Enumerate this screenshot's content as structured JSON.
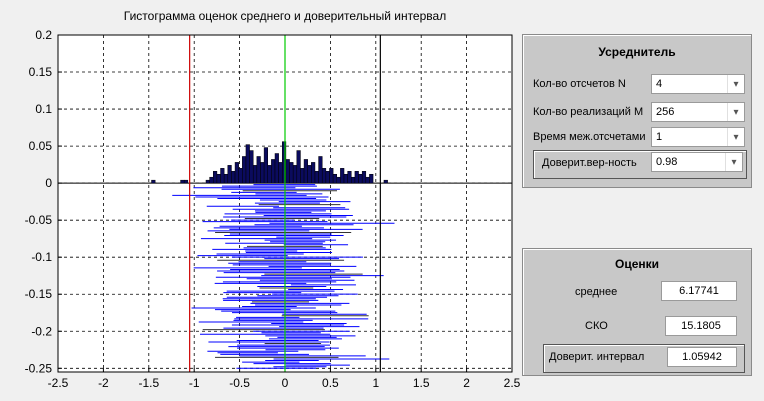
{
  "plot": {
    "title": "Гистограмма оценок среднего и доверительный интервал",
    "x_ticks": [
      "-2.5",
      "-2",
      "-1.5",
      "-1",
      "-0.5",
      "0",
      "0.5",
      "1",
      "1.5",
      "2",
      "2.5"
    ],
    "y_ticks": [
      "0.2",
      "0.15",
      "0.1",
      "0.05",
      "0",
      "-0.05",
      "-0.1",
      "-0.15",
      "-0.2",
      "-0.25"
    ],
    "colors": {
      "histogram": "#0b0b5e",
      "intervals": "#0000ff",
      "mean_line": "#00cc00",
      "left_bound": "#cc0000",
      "right_bound": "#000000"
    }
  },
  "chart_data": {
    "type": "bar",
    "xlim": [
      -2.5,
      2.5
    ],
    "ylim": [
      -0.255,
      0.2
    ],
    "grid": true,
    "vertical_lines": {
      "mean": 0,
      "left_bound": -1.05,
      "right_bound": 1.05
    },
    "histogram": {
      "bin_width": 0.04,
      "bins": [
        {
          "x": -1.45,
          "h": 0.004
        },
        {
          "x": -1.13,
          "h": 0.004
        },
        {
          "x": -1.09,
          "h": 0.004
        },
        {
          "x": -0.85,
          "h": 0.004
        },
        {
          "x": -0.81,
          "h": 0.008
        },
        {
          "x": -0.77,
          "h": 0.016
        },
        {
          "x": -0.73,
          "h": 0.012
        },
        {
          "x": -0.69,
          "h": 0.02
        },
        {
          "x": -0.65,
          "h": 0.012
        },
        {
          "x": -0.61,
          "h": 0.024
        },
        {
          "x": -0.57,
          "h": 0.016
        },
        {
          "x": -0.53,
          "h": 0.028
        },
        {
          "x": -0.49,
          "h": 0.02
        },
        {
          "x": -0.45,
          "h": 0.036
        },
        {
          "x": -0.41,
          "h": 0.052
        },
        {
          "x": -0.37,
          "h": 0.044
        },
        {
          "x": -0.33,
          "h": 0.024
        },
        {
          "x": -0.29,
          "h": 0.036
        },
        {
          "x": -0.25,
          "h": 0.028
        },
        {
          "x": -0.21,
          "h": 0.048
        },
        {
          "x": -0.17,
          "h": 0.024
        },
        {
          "x": -0.13,
          "h": 0.032
        },
        {
          "x": -0.09,
          "h": 0.04
        },
        {
          "x": -0.05,
          "h": 0.028
        },
        {
          "x": -0.01,
          "h": 0.056
        },
        {
          "x": 0.03,
          "h": 0.032
        },
        {
          "x": 0.07,
          "h": 0.028
        },
        {
          "x": 0.11,
          "h": 0.024
        },
        {
          "x": 0.15,
          "h": 0.044
        },
        {
          "x": 0.19,
          "h": 0.02
        },
        {
          "x": 0.23,
          "h": 0.032
        },
        {
          "x": 0.27,
          "h": 0.024
        },
        {
          "x": 0.31,
          "h": 0.028
        },
        {
          "x": 0.35,
          "h": 0.016
        },
        {
          "x": 0.39,
          "h": 0.036
        },
        {
          "x": 0.43,
          "h": 0.02
        },
        {
          "x": 0.47,
          "h": 0.016
        },
        {
          "x": 0.51,
          "h": 0.02
        },
        {
          "x": 0.55,
          "h": 0.012
        },
        {
          "x": 0.59,
          "h": 0.008
        },
        {
          "x": 0.63,
          "h": 0.02
        },
        {
          "x": 0.67,
          "h": 0.012
        },
        {
          "x": 0.71,
          "h": 0.016
        },
        {
          "x": 0.75,
          "h": 0.008
        },
        {
          "x": 0.79,
          "h": 0.016
        },
        {
          "x": 0.83,
          "h": 0.012
        },
        {
          "x": 0.87,
          "h": 0.016
        },
        {
          "x": 0.91,
          "h": 0.008
        },
        {
          "x": 0.95,
          "h": 0.012
        },
        {
          "x": 1.11,
          "h": 0.004
        }
      ]
    },
    "interval_half_width": 0.52,
    "intervals_count": 120
  },
  "averager": {
    "title": "Усреднитель",
    "rows": [
      {
        "label": "Кол-во отсчетов N",
        "value": "4"
      },
      {
        "label": "Кол-во реализаций M",
        "value": "256"
      },
      {
        "label": "Время меж.отсчетами",
        "value": "1"
      },
      {
        "label": "Доверит.вер-ность",
        "value": "0.98"
      }
    ]
  },
  "estimates": {
    "title": "Оценки",
    "mean_label": "среднее",
    "mean_value": "6.17741",
    "sko_label": "СКО",
    "sko_value": "15.1805",
    "ci_label": "Доверит. интервал",
    "ci_value": "1.05942"
  }
}
